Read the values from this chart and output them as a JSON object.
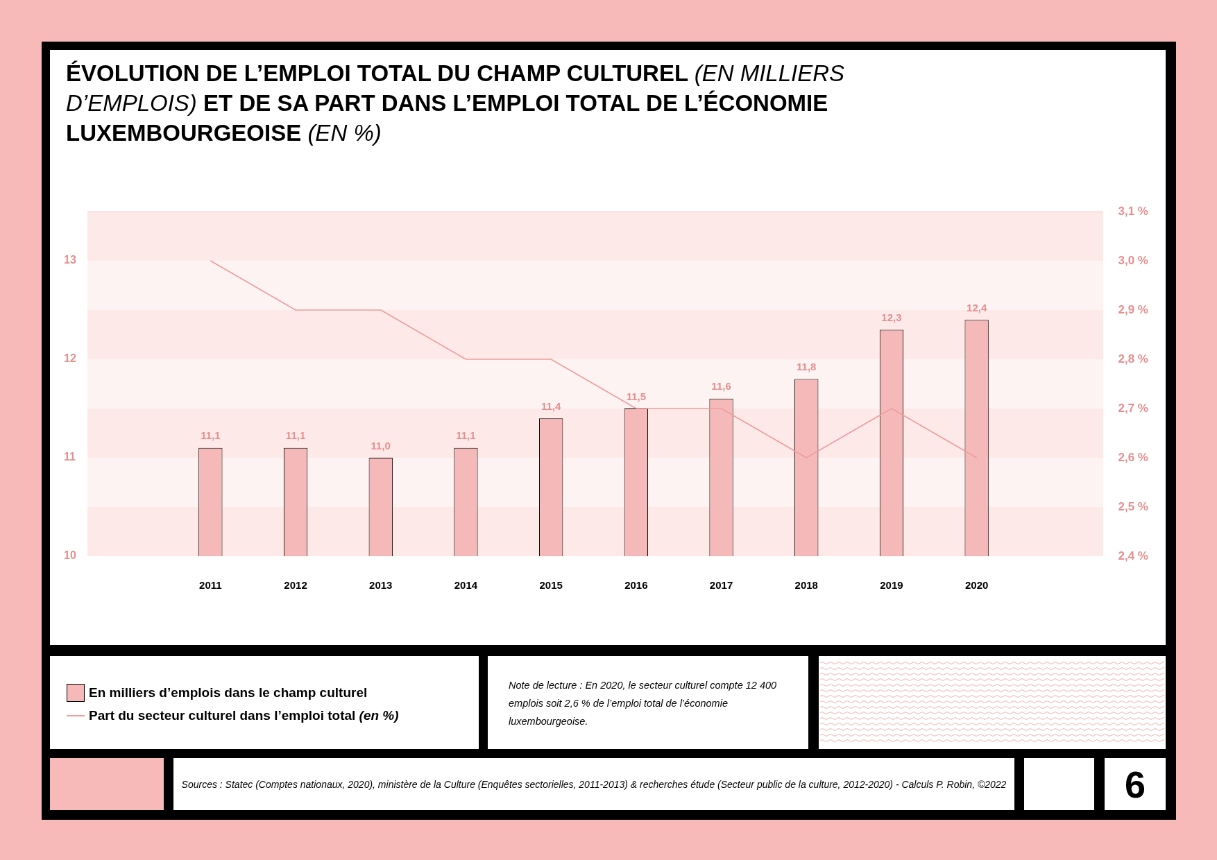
{
  "chart_data": {
    "type": "bar",
    "title": "ÉVOLUTION DE L’EMPLOI TOTAL DU CHAMP CULTUREL (EN MILLIERS D’EMPLOIS) ET DE SA PART DANS L’EMPLOI TOTAL DE L’ÉCONOMIE LUXEMBOURGEOISE (EN %)",
    "categories": [
      "2011",
      "2012",
      "2013",
      "2014",
      "2015",
      "2016",
      "2017",
      "2018",
      "2019",
      "2020"
    ],
    "series": [
      {
        "name": "En milliers d’emplois dans le champ culturel",
        "color": "#f6b9b9",
        "values": [
          11.1,
          11.1,
          11.0,
          11.1,
          11.4,
          11.5,
          11.6,
          11.8,
          12.3,
          12.4
        ],
        "value_labels": [
          "11,1",
          "11,1",
          "11,0",
          "11,1",
          "11,4",
          "11,5",
          "11,6",
          "11,8",
          "12,3",
          "12,4"
        ]
      },
      {
        "name": "Part du secteur culturel dans l’emploi total (en %)",
        "type": "line",
        "axis": "y2",
        "color": "#ef9d9d",
        "values": [
          3.0,
          2.9,
          2.9,
          2.8,
          2.8,
          2.7,
          2.7,
          2.6,
          2.7,
          2.6
        ]
      }
    ],
    "ylim": [
      10,
      13.5
    ],
    "yticks": [
      10,
      11,
      12,
      13
    ],
    "y2lim": [
      2.4,
      3.1
    ],
    "y2ticks": [
      {
        "value": 2.4,
        "label": "2,4 %"
      },
      {
        "value": 2.5,
        "label": "2,5 %"
      },
      {
        "value": 2.6,
        "label": "2,6 %"
      },
      {
        "value": 2.7,
        "label": "2,7 %"
      },
      {
        "value": 2.8,
        "label": "2,8 %"
      },
      {
        "value": 2.9,
        "label": "2,9 %"
      },
      {
        "value": 3.0,
        "label": "3,0 %"
      },
      {
        "value": 3.1,
        "label": "3,1 %"
      }
    ],
    "bands": [
      {
        "axis": "y2",
        "from": 2.4,
        "to": 2.5,
        "color": "#fdeae8"
      },
      {
        "axis": "y2",
        "from": 2.5,
        "to": 2.6,
        "color": "#fdf3f2"
      },
      {
        "axis": "y2",
        "from": 2.6,
        "to": 2.7,
        "color": "#fdeae8"
      },
      {
        "axis": "y2",
        "from": 2.7,
        "to": 2.8,
        "color": "#fdf3f2"
      },
      {
        "axis": "y2",
        "from": 2.8,
        "to": 2.9,
        "color": "#fdeae8"
      },
      {
        "axis": "y2",
        "from": 2.9,
        "to": 3.0,
        "color": "#fdf3f2"
      },
      {
        "axis": "y2",
        "from": 3.0,
        "to": 3.1,
        "color": "#fdeae8"
      }
    ],
    "legend": "bottom left",
    "marker": "none",
    "line_style": "solid",
    "annotations": [
      "Note de lecture : En 2020, le secteur culturel compte 12 400 emplois soit 2,6 % de l’emploi total de l’économie luxembourgeoise.",
      "Sources : Statec (Comptes nationaux, 2020), ministère de la Culture (Enquêtes sectorielles, 2011-2013) & recherches étude (Secteur public de la culture, 2012-2020) - Calculs P. Robin, ©2022",
      "6"
    ]
  }
}
